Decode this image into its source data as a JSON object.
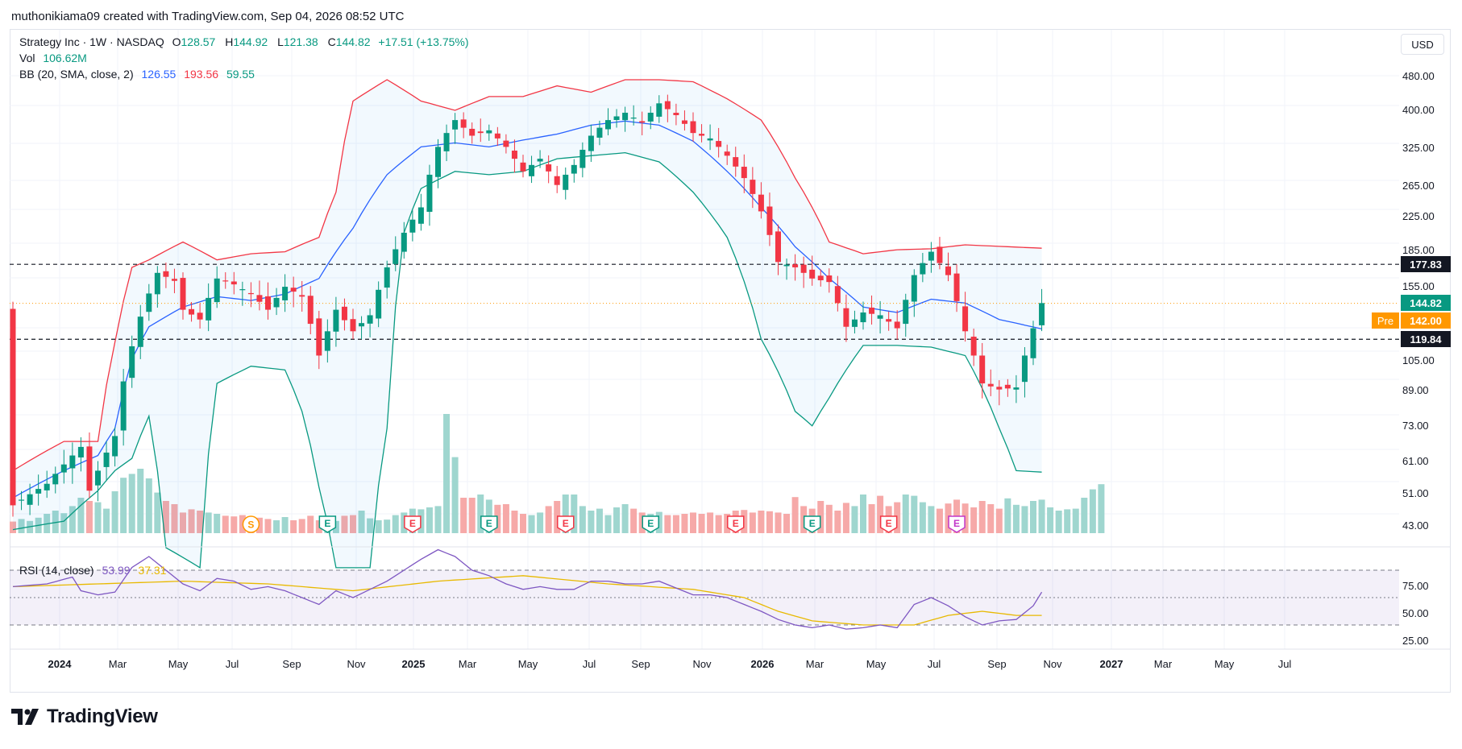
{
  "header": {
    "attribution": "muthonikiama09 created with TradingView.com, Sep 04, 2026 08:52 UTC"
  },
  "legend": {
    "symbol": "Strategy Inc · 1W · NASDAQ",
    "ohlc": {
      "o_label": "O",
      "o": "128.57",
      "h_label": "H",
      "h": "144.92",
      "l_label": "L",
      "l": "121.38",
      "c_label": "C",
      "c": "144.82",
      "change": "+17.51 (+13.75%)"
    },
    "vol_label": "Vol",
    "vol": "106.62M",
    "bb_label": "BB (20, SMA, close, 2)",
    "bb_basis": "126.55",
    "bb_upper": "193.56",
    "bb_lower": "59.55",
    "rsi_label": "RSI (14, close)",
    "rsi_value": "53.99",
    "rsi_ma": "37.31"
  },
  "currency_button": "USD",
  "brand": {
    "name": "TradingView"
  },
  "colors": {
    "up": "#089981",
    "down": "#f23645",
    "bb_basis": "#2962ff",
    "bb_upper": "#f23645",
    "bb_lower": "#089981",
    "rsi": "#7e57c2",
    "rsi_ma": "#e8b900",
    "pre_tag": "#ff9800",
    "earnings": "#f23645",
    "earnings_future": "#c236c9"
  },
  "chart_data": {
    "type": "candlestick",
    "title": "Strategy Inc · 1W · NASDAQ",
    "y_scale": "log",
    "y_ticks": [
      "480.00",
      "400.00",
      "325.00",
      "265.00",
      "225.00",
      "185.00",
      "155.00",
      "119.84",
      "105.00",
      "89.00",
      "73.00",
      "61.00",
      "51.00",
      "43.00"
    ],
    "x_ticks": [
      "2024",
      "Mar",
      "May",
      "Jul",
      "Sep",
      "Nov",
      "2025",
      "Mar",
      "May",
      "Jul",
      "Sep",
      "Nov",
      "2026",
      "Mar",
      "May",
      "Jul",
      "Sep",
      "Nov",
      "2027",
      "Mar",
      "May",
      "Jul"
    ],
    "price_levels": [
      {
        "label": "177.83",
        "value": 177.83,
        "style": "dashed"
      },
      {
        "label": "119.84",
        "value": 119.84,
        "style": "dashed"
      }
    ],
    "last_price": {
      "label": "144.82",
      "value": 144.82
    },
    "pre_market": {
      "badge": "Pre",
      "label": "142.00",
      "value": 142.0
    },
    "close_path": [
      [
        0,
        50
      ],
      [
        4,
        56
      ],
      [
        8,
        68
      ],
      [
        9,
        54
      ],
      [
        12,
        72
      ],
      [
        13,
        96
      ],
      [
        15,
        135
      ],
      [
        17,
        170
      ],
      [
        19,
        163
      ],
      [
        20,
        140
      ],
      [
        22,
        133
      ],
      [
        24,
        165
      ],
      [
        26,
        160
      ],
      [
        28,
        152
      ],
      [
        30,
        140
      ],
      [
        32,
        158
      ],
      [
        34,
        150
      ],
      [
        36,
        110
      ],
      [
        38,
        140
      ],
      [
        40,
        125
      ],
      [
        42,
        136
      ],
      [
        44,
        175
      ],
      [
        46,
        210
      ],
      [
        48,
        240
      ],
      [
        50,
        330
      ],
      [
        52,
        380
      ],
      [
        54,
        350
      ],
      [
        56,
        360
      ],
      [
        58,
        330
      ],
      [
        60,
        290
      ],
      [
        62,
        310
      ],
      [
        64,
        270
      ],
      [
        66,
        300
      ],
      [
        68,
        350
      ],
      [
        70,
        380
      ],
      [
        72,
        395
      ],
      [
        74,
        375
      ],
      [
        76,
        415
      ],
      [
        78,
        390
      ],
      [
        80,
        355
      ],
      [
        82,
        345
      ],
      [
        84,
        315
      ],
      [
        86,
        280
      ],
      [
        88,
        235
      ],
      [
        90,
        180
      ],
      [
        92,
        175
      ],
      [
        94,
        165
      ],
      [
        96,
        162
      ],
      [
        98,
        128
      ],
      [
        100,
        138
      ],
      [
        102,
        136
      ],
      [
        104,
        127
      ],
      [
        106,
        168
      ],
      [
        108,
        190
      ],
      [
        110,
        168
      ],
      [
        112,
        125
      ],
      [
        114,
        95
      ],
      [
        116,
        92
      ],
      [
        118,
        93
      ],
      [
        120,
        127
      ],
      [
        121,
        145
      ]
    ],
    "bb": {
      "basis": [
        [
          0,
          52
        ],
        [
          6,
          60
        ],
        [
          10,
          65
        ],
        [
          12,
          75
        ],
        [
          14,
          108
        ],
        [
          16,
          128
        ],
        [
          20,
          142
        ],
        [
          24,
          150
        ],
        [
          28,
          147
        ],
        [
          32,
          152
        ],
        [
          36,
          165
        ],
        [
          40,
          215
        ],
        [
          44,
          285
        ],
        [
          48,
          330
        ],
        [
          52,
          337
        ],
        [
          56,
          330
        ],
        [
          60,
          342
        ],
        [
          64,
          353
        ],
        [
          68,
          370
        ],
        [
          72,
          378
        ],
        [
          76,
          370
        ],
        [
          80,
          340
        ],
        [
          84,
          290
        ],
        [
          88,
          240
        ],
        [
          92,
          195
        ],
        [
          96,
          165
        ],
        [
          100,
          142
        ],
        [
          104,
          138
        ],
        [
          108,
          148
        ],
        [
          112,
          145
        ],
        [
          116,
          133
        ],
        [
          121,
          126.55
        ]
      ],
      "upper": [
        [
          0,
          60
        ],
        [
          6,
          70
        ],
        [
          10,
          70
        ],
        [
          12,
          118
        ],
        [
          14,
          175
        ],
        [
          16,
          182
        ],
        [
          20,
          200
        ],
        [
          24,
          182
        ],
        [
          28,
          188
        ],
        [
          32,
          190
        ],
        [
          36,
          205
        ],
        [
          38,
          260
        ],
        [
          40,
          420
        ],
        [
          44,
          470
        ],
        [
          48,
          420
        ],
        [
          52,
          400
        ],
        [
          56,
          430
        ],
        [
          60,
          430
        ],
        [
          64,
          455
        ],
        [
          68,
          440
        ],
        [
          72,
          470
        ],
        [
          76,
          470
        ],
        [
          80,
          465
        ],
        [
          84,
          425
        ],
        [
          88,
          380
        ],
        [
          92,
          280
        ],
        [
          96,
          200
        ],
        [
          100,
          188
        ],
        [
          104,
          192
        ],
        [
          108,
          193
        ],
        [
          112,
          197
        ],
        [
          121,
          193.56
        ]
      ],
      "lower": [
        [
          0,
          44
        ],
        [
          6,
          46
        ],
        [
          10,
          54
        ],
        [
          12,
          60
        ],
        [
          14,
          64
        ],
        [
          16,
          80
        ],
        [
          18,
          40
        ],
        [
          22,
          36
        ],
        [
          24,
          95
        ],
        [
          28,
          104
        ],
        [
          32,
          102
        ],
        [
          34,
          82
        ],
        [
          36,
          55
        ],
        [
          38,
          36
        ],
        [
          42,
          36
        ],
        [
          44,
          75
        ],
        [
          46,
          210
        ],
        [
          48,
          265
        ],
        [
          52,
          290
        ],
        [
          56,
          285
        ],
        [
          60,
          290
        ],
        [
          64,
          310
        ],
        [
          68,
          315
        ],
        [
          72,
          320
        ],
        [
          76,
          305
        ],
        [
          80,
          260
        ],
        [
          84,
          205
        ],
        [
          88,
          120
        ],
        [
          92,
          82
        ],
        [
          94,
          76
        ],
        [
          96,
          88
        ],
        [
          100,
          116
        ],
        [
          104,
          116
        ],
        [
          108,
          115
        ],
        [
          112,
          110
        ],
        [
          116,
          75
        ],
        [
          118,
          60
        ],
        [
          121,
          59.55
        ]
      ]
    },
    "volume_rel": [
      0.18,
      0.22,
      0.19,
      0.24,
      0.3,
      0.35,
      0.31,
      0.42,
      0.55,
      0.5,
      0.48,
      0.38,
      0.65,
      0.86,
      0.92,
      1.0,
      0.85,
      0.63,
      0.5,
      0.45,
      0.32,
      0.37,
      0.35,
      0.32,
      0.3,
      0.27,
      0.26,
      0.28,
      0.25,
      0.24,
      0.22,
      0.2,
      0.25,
      0.2,
      0.22,
      0.27,
      0.2,
      0.25,
      0.19,
      0.27,
      0.28,
      0.35,
      0.23,
      0.2,
      0.21,
      0.28,
      0.32,
      0.38,
      0.37,
      0.4,
      0.42,
      1.85,
      1.18,
      0.55,
      0.55,
      0.6,
      0.52,
      0.44,
      0.45,
      0.35,
      0.3,
      0.28,
      0.32,
      0.42,
      0.5,
      0.6,
      0.6,
      0.42,
      0.35,
      0.38,
      0.28,
      0.4,
      0.45,
      0.38,
      0.32,
      0.3,
      0.33,
      0.28,
      0.28,
      0.3,
      0.32,
      0.3,
      0.32,
      0.28,
      0.3,
      0.35,
      0.36,
      0.32,
      0.35,
      0.34,
      0.32,
      0.3,
      0.56,
      0.42,
      0.38,
      0.5,
      0.44,
      0.35,
      0.47,
      0.42,
      0.6,
      0.45,
      0.58,
      0.42,
      0.48,
      0.6,
      0.58,
      0.48,
      0.42,
      0.38,
      0.46,
      0.52,
      0.46,
      0.4,
      0.5,
      0.45,
      0.38,
      0.54,
      0.44,
      0.42,
      0.5,
      0.52,
      0.4,
      0.35,
      0.37,
      0.38,
      0.55,
      0.68,
      0.76
    ],
    "rsi": {
      "axis_ticks": [
        "75.00",
        "50.00",
        "25.00"
      ],
      "upper_band": 70,
      "lower_band": 30,
      "series": [
        [
          0,
          58
        ],
        [
          4,
          60
        ],
        [
          7,
          65
        ],
        [
          8,
          55
        ],
        [
          10,
          52
        ],
        [
          12,
          54
        ],
        [
          14,
          72
        ],
        [
          16,
          80
        ],
        [
          18,
          70
        ],
        [
          20,
          60
        ],
        [
          22,
          55
        ],
        [
          24,
          64
        ],
        [
          26,
          62
        ],
        [
          28,
          56
        ],
        [
          30,
          58
        ],
        [
          32,
          55
        ],
        [
          34,
          50
        ],
        [
          36,
          45
        ],
        [
          38,
          55
        ],
        [
          40,
          50
        ],
        [
          42,
          56
        ],
        [
          44,
          62
        ],
        [
          46,
          70
        ],
        [
          48,
          78
        ],
        [
          50,
          85
        ],
        [
          52,
          80
        ],
        [
          54,
          70
        ],
        [
          56,
          66
        ],
        [
          58,
          60
        ],
        [
          60,
          56
        ],
        [
          62,
          58
        ],
        [
          64,
          56
        ],
        [
          66,
          56
        ],
        [
          68,
          62
        ],
        [
          70,
          62
        ],
        [
          72,
          60
        ],
        [
          74,
          60
        ],
        [
          76,
          62
        ],
        [
          78,
          57
        ],
        [
          80,
          52
        ],
        [
          82,
          52
        ],
        [
          84,
          50
        ],
        [
          86,
          45
        ],
        [
          88,
          40
        ],
        [
          90,
          34
        ],
        [
          92,
          30
        ],
        [
          94,
          28
        ],
        [
          96,
          30
        ],
        [
          98,
          27
        ],
        [
          100,
          28
        ],
        [
          102,
          30
        ],
        [
          104,
          28
        ],
        [
          106,
          45
        ],
        [
          108,
          50
        ],
        [
          110,
          44
        ],
        [
          112,
          36
        ],
        [
          114,
          30
        ],
        [
          116,
          33
        ],
        [
          118,
          34
        ],
        [
          120,
          44
        ],
        [
          121,
          54
        ]
      ],
      "ma": [
        [
          0,
          58
        ],
        [
          10,
          60
        ],
        [
          20,
          62
        ],
        [
          30,
          60
        ],
        [
          40,
          55
        ],
        [
          50,
          62
        ],
        [
          60,
          66
        ],
        [
          70,
          60
        ],
        [
          80,
          56
        ],
        [
          86,
          50
        ],
        [
          90,
          40
        ],
        [
          94,
          33
        ],
        [
          100,
          30
        ],
        [
          106,
          30
        ],
        [
          110,
          37
        ],
        [
          114,
          40
        ],
        [
          118,
          37
        ],
        [
          121,
          37
        ]
      ]
    },
    "event_markers": [
      {
        "label": "S",
        "kind": "split",
        "week": 28
      },
      {
        "label": "E",
        "kind": "earnings",
        "week": 37
      },
      {
        "label": "E",
        "kind": "earnings",
        "week": 47
      },
      {
        "label": "E",
        "kind": "earnings",
        "week": 56
      },
      {
        "label": "E",
        "kind": "earnings",
        "week": 65
      },
      {
        "label": "E",
        "kind": "earnings",
        "week": 75
      },
      {
        "label": "E",
        "kind": "earnings",
        "week": 85
      },
      {
        "label": "E",
        "kind": "earnings",
        "week": 94
      },
      {
        "label": "E",
        "kind": "earnings",
        "week": 103
      },
      {
        "label": "E",
        "kind": "earnings-future",
        "week": 111
      }
    ]
  }
}
